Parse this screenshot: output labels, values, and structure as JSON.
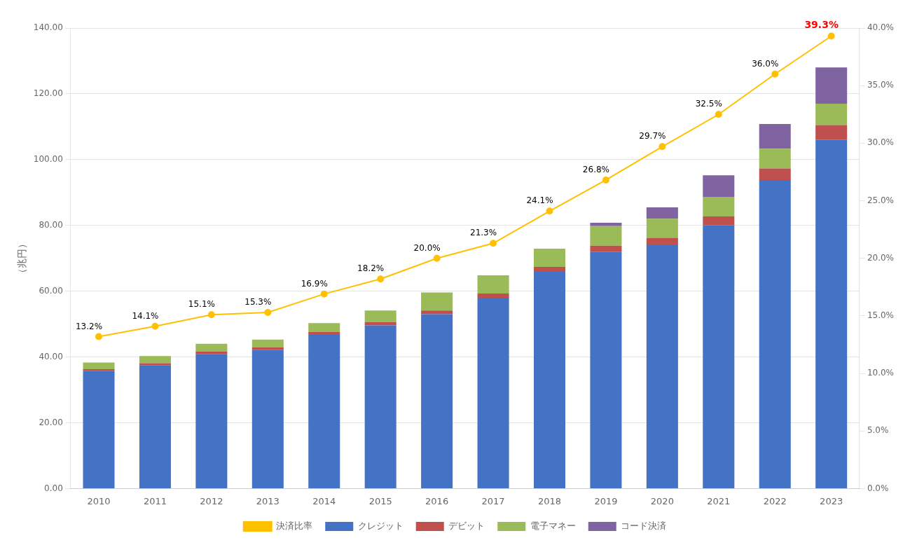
{
  "chart_data": {
    "type": "bar",
    "stacked": true,
    "ylabel": "（兆円）",
    "categories": [
      "2010",
      "2011",
      "2012",
      "2013",
      "2014",
      "2015",
      "2016",
      "2017",
      "2018",
      "2019",
      "2020",
      "2021",
      "2022",
      "2023"
    ],
    "series": [
      {
        "name": "クレジット",
        "color": "#4472C4",
        "values": [
          35.8,
          37.5,
          40.9,
          42.1,
          46.7,
          49.6,
          53.0,
          58.0,
          65.9,
          72.0,
          74.0,
          80.0,
          93.8,
          106.0
        ]
      },
      {
        "name": "デビット",
        "color": "#C0504D",
        "values": [
          0.5,
          0.6,
          0.7,
          0.8,
          0.9,
          1.0,
          1.1,
          1.3,
          1.5,
          1.8,
          2.2,
          2.7,
          3.5,
          4.5
        ]
      },
      {
        "name": "電子マネー",
        "color": "#9BBB59",
        "values": [
          2.0,
          2.2,
          2.4,
          2.4,
          2.7,
          3.5,
          5.5,
          5.5,
          5.5,
          6.0,
          5.8,
          6.0,
          6.0,
          6.5
        ]
      },
      {
        "name": "コード決済",
        "color": "#8064A2",
        "values": [
          0.0,
          0.0,
          0.0,
          0.0,
          0.0,
          0.0,
          0.0,
          0.0,
          0.0,
          1.0,
          3.5,
          6.5,
          7.5,
          11.0
        ]
      },
      {
        "name": "決済比率",
        "type": "line",
        "axis": "y2",
        "color": "#FFC000",
        "marker": "circle",
        "data_labels": true,
        "values": [
          13.2,
          14.1,
          15.1,
          15.3,
          16.9,
          18.2,
          20.0,
          21.3,
          24.1,
          26.8,
          29.7,
          32.5,
          36.0,
          39.3
        ],
        "value_labels": [
          "13.2%",
          "14.1%",
          "15.1%",
          "15.3%",
          "16.9%",
          "18.2%",
          "20.0%",
          "21.3%",
          "24.1%",
          "26.8%",
          "29.7%",
          "32.5%",
          "36.0%",
          "39.3%"
        ]
      }
    ],
    "ylim": [
      0,
      140
    ],
    "yticks": [
      {
        "value": 0,
        "label": "0.00"
      },
      {
        "value": 20,
        "label": "20.00"
      },
      {
        "value": 40,
        "label": "40.00"
      },
      {
        "value": 60,
        "label": "60.00"
      },
      {
        "value": 80,
        "label": "80.00"
      },
      {
        "value": 100,
        "label": "100.00"
      },
      {
        "value": 120,
        "label": "120.00"
      },
      {
        "value": 140,
        "label": "140.00"
      }
    ],
    "y2lim": [
      0,
      40
    ],
    "y2ticks": [
      {
        "value": 0,
        "label": "0.0%"
      },
      {
        "value": 5,
        "label": "5.0%"
      },
      {
        "value": 10,
        "label": "10.0%"
      },
      {
        "value": 15,
        "label": "15.0%"
      },
      {
        "value": 20,
        "label": "20.0%"
      },
      {
        "value": 25,
        "label": "25.0%"
      },
      {
        "value": 30,
        "label": "30.0%"
      },
      {
        "value": 35,
        "label": "35.0%"
      },
      {
        "value": 40,
        "label": "40.0%"
      }
    ],
    "grid": true,
    "legend": "bottom"
  }
}
